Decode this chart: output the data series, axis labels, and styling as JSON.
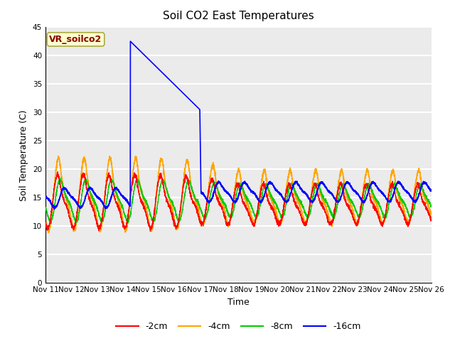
{
  "title": "Soil CO2 East Temperatures",
  "xlabel": "Time",
  "ylabel": "Soil Temperature (C)",
  "ylim": [
    0,
    45
  ],
  "annotation_text": "VR_soilco2",
  "annotation_color": "#8B0000",
  "annotation_bg": "#FFFFCC",
  "background_color": "#EBEBEB",
  "grid_color": "#FFFFFF",
  "legend_labels": [
    "-2cm",
    "-4cm",
    "-8cm",
    "-16cm"
  ],
  "legend_colors": [
    "#FF0000",
    "#FFA500",
    "#00CC00",
    "#0000FF"
  ],
  "xtick_labels": [
    "Nov 11",
    "Nov 12",
    "Nov 13",
    "Nov 14",
    "Nov 15",
    "Nov 16",
    "Nov 17",
    "Nov 18",
    "Nov 19",
    "Nov 20",
    "Nov 21",
    "Nov 22",
    "Nov 23",
    "Nov 24",
    "Nov 25",
    "Nov 26"
  ]
}
